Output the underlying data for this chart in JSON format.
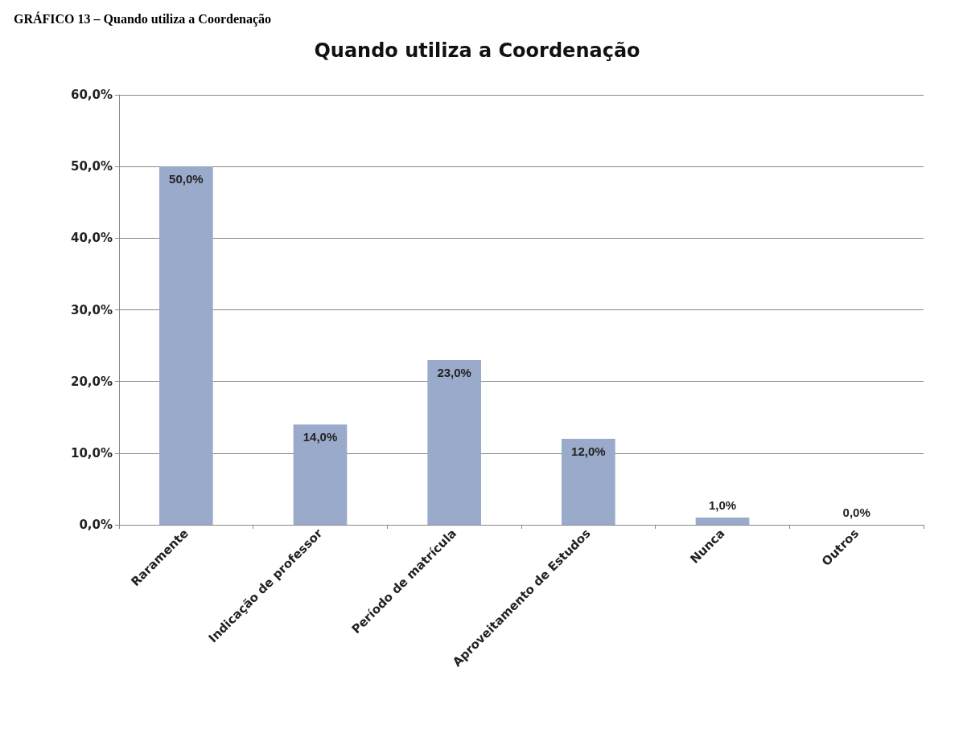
{
  "chart_data": {
    "type": "bar",
    "title": "Quando utiliza a Coordenação",
    "annotations": [
      "GRÁFICO 13 – Quando utiliza a Coordenação"
    ],
    "categories": [
      "Raramente",
      "Indicação de professor",
      "Período de matrícula",
      "Aproveitamento de Estudos",
      "Nunca",
      "Outros"
    ],
    "values": [
      50,
      14,
      23,
      12,
      1,
      0
    ],
    "value_labels": [
      "50,0%",
      "14,0%",
      "23,0%",
      "12,0%",
      "1,0%",
      "0,0%"
    ],
    "color": "#9aaacb",
    "ylim": [
      0,
      60
    ],
    "yticks": [
      {
        "value": 0,
        "label": "0,0%"
      },
      {
        "value": 10,
        "label": "10,0%"
      },
      {
        "value": 20,
        "label": "20,0%"
      },
      {
        "value": 30,
        "label": "30,0%"
      },
      {
        "value": 40,
        "label": "40,0%"
      },
      {
        "value": 50,
        "label": "50,0%"
      },
      {
        "value": 60,
        "label": "60,0%"
      }
    ],
    "grid": "y"
  }
}
